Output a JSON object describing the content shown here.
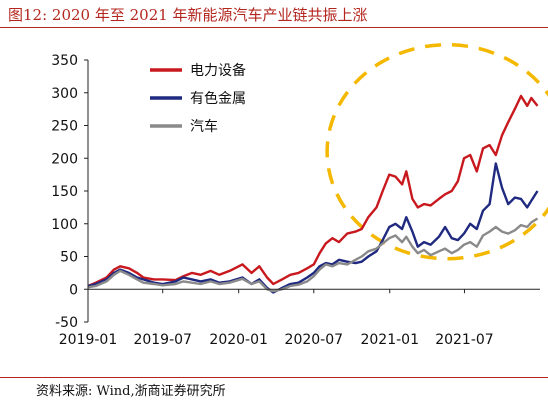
{
  "figure": {
    "title": "图12:   2020 年至 2021 年新能源汽车产业链共振上涨",
    "source": "资料来源:  Wind,浙商证券研究所"
  },
  "chart_data": {
    "type": "line",
    "title": "",
    "xlabel": "",
    "ylabel": "",
    "ylim": [
      -50,
      350
    ],
    "yticks": [
      -50,
      0,
      50,
      100,
      150,
      200,
      250,
      300,
      350
    ],
    "xlim": [
      "2019-01-01",
      "2021-12-31"
    ],
    "xticks": [
      {
        "date": "2019-01-01",
        "label": "2019-01"
      },
      {
        "date": "2019-07-01",
        "label": "2019-07"
      },
      {
        "date": "2020-01-01",
        "label": "2020-01"
      },
      {
        "date": "2020-07-01",
        "label": "2020-07"
      },
      {
        "date": "2021-01-01",
        "label": "2021-01"
      },
      {
        "date": "2021-07-01",
        "label": "2021-07"
      }
    ],
    "grid": false,
    "legend_position": "top-left",
    "annotation": "dashed orange ellipse highlighting 2021 rally",
    "colors": {
      "annotation": "#f5b800"
    },
    "series": [
      {
        "name": "电力设备",
        "color": "#c8191e",
        "points": [
          [
            "2019-01-01",
            5
          ],
          [
            "2019-01-20",
            10
          ],
          [
            "2019-02-15",
            18
          ],
          [
            "2019-03-05",
            30
          ],
          [
            "2019-03-20",
            35
          ],
          [
            "2019-04-10",
            32
          ],
          [
            "2019-04-30",
            25
          ],
          [
            "2019-05-15",
            18
          ],
          [
            "2019-06-10",
            15
          ],
          [
            "2019-07-01",
            15
          ],
          [
            "2019-08-01",
            14
          ],
          [
            "2019-08-20",
            20
          ],
          [
            "2019-09-10",
            25
          ],
          [
            "2019-10-01",
            22
          ],
          [
            "2019-10-25",
            28
          ],
          [
            "2019-11-15",
            22
          ],
          [
            "2019-12-10",
            28
          ],
          [
            "2020-01-10",
            38
          ],
          [
            "2020-02-01",
            25
          ],
          [
            "2020-02-20",
            35
          ],
          [
            "2020-03-10",
            18
          ],
          [
            "2020-03-25",
            8
          ],
          [
            "2020-04-15",
            15
          ],
          [
            "2020-05-05",
            22
          ],
          [
            "2020-05-25",
            25
          ],
          [
            "2020-06-15",
            32
          ],
          [
            "2020-07-01",
            38
          ],
          [
            "2020-07-15",
            55
          ],
          [
            "2020-07-30",
            70
          ],
          [
            "2020-08-15",
            78
          ],
          [
            "2020-08-31",
            72
          ],
          [
            "2020-09-20",
            85
          ],
          [
            "2020-10-10",
            88
          ],
          [
            "2020-10-25",
            92
          ],
          [
            "2020-11-10",
            110
          ],
          [
            "2020-11-30",
            125
          ],
          [
            "2020-12-15",
            150
          ],
          [
            "2020-12-31",
            175
          ],
          [
            "2021-01-15",
            172
          ],
          [
            "2021-01-31",
            160
          ],
          [
            "2021-02-10",
            180
          ],
          [
            "2021-02-25",
            138
          ],
          [
            "2021-03-10",
            125
          ],
          [
            "2021-03-25",
            130
          ],
          [
            "2021-04-10",
            128
          ],
          [
            "2021-04-30",
            138
          ],
          [
            "2021-05-15",
            145
          ],
          [
            "2021-05-31",
            150
          ],
          [
            "2021-06-15",
            165
          ],
          [
            "2021-06-30",
            200
          ],
          [
            "2021-07-15",
            205
          ],
          [
            "2021-07-31",
            180
          ],
          [
            "2021-08-15",
            215
          ],
          [
            "2021-08-31",
            220
          ],
          [
            "2021-09-15",
            205
          ],
          [
            "2021-09-30",
            235
          ],
          [
            "2021-10-15",
            255
          ],
          [
            "2021-10-31",
            275
          ],
          [
            "2021-11-15",
            295
          ],
          [
            "2021-11-30",
            280
          ],
          [
            "2021-12-10",
            292
          ],
          [
            "2021-12-25",
            280
          ]
        ]
      },
      {
        "name": "有色金属",
        "color": "#1f2a80",
        "points": [
          [
            "2019-01-01",
            5
          ],
          [
            "2019-01-20",
            8
          ],
          [
            "2019-02-15",
            15
          ],
          [
            "2019-03-05",
            25
          ],
          [
            "2019-03-20",
            30
          ],
          [
            "2019-04-10",
            25
          ],
          [
            "2019-04-30",
            18
          ],
          [
            "2019-05-15",
            15
          ],
          [
            "2019-06-10",
            10
          ],
          [
            "2019-07-01",
            8
          ],
          [
            "2019-08-01",
            12
          ],
          [
            "2019-08-20",
            18
          ],
          [
            "2019-09-10",
            15
          ],
          [
            "2019-10-01",
            12
          ],
          [
            "2019-10-25",
            15
          ],
          [
            "2019-11-15",
            10
          ],
          [
            "2019-12-10",
            12
          ],
          [
            "2020-01-10",
            18
          ],
          [
            "2020-02-01",
            8
          ],
          [
            "2020-02-20",
            15
          ],
          [
            "2020-03-10",
            2
          ],
          [
            "2020-03-25",
            -5
          ],
          [
            "2020-04-15",
            2
          ],
          [
            "2020-05-05",
            8
          ],
          [
            "2020-05-25",
            10
          ],
          [
            "2020-06-15",
            18
          ],
          [
            "2020-07-01",
            25
          ],
          [
            "2020-07-15",
            35
          ],
          [
            "2020-07-30",
            40
          ],
          [
            "2020-08-15",
            38
          ],
          [
            "2020-08-31",
            45
          ],
          [
            "2020-09-20",
            42
          ],
          [
            "2020-10-10",
            40
          ],
          [
            "2020-10-25",
            42
          ],
          [
            "2020-11-10",
            50
          ],
          [
            "2020-11-30",
            58
          ],
          [
            "2020-12-15",
            75
          ],
          [
            "2020-12-31",
            95
          ],
          [
            "2021-01-15",
            100
          ],
          [
            "2021-01-31",
            92
          ],
          [
            "2021-02-10",
            110
          ],
          [
            "2021-02-25",
            88
          ],
          [
            "2021-03-10",
            65
          ],
          [
            "2021-03-25",
            72
          ],
          [
            "2021-04-10",
            68
          ],
          [
            "2021-04-30",
            80
          ],
          [
            "2021-05-15",
            95
          ],
          [
            "2021-05-31",
            78
          ],
          [
            "2021-06-15",
            75
          ],
          [
            "2021-06-30",
            85
          ],
          [
            "2021-07-15",
            100
          ],
          [
            "2021-07-31",
            92
          ],
          [
            "2021-08-15",
            120
          ],
          [
            "2021-08-31",
            130
          ],
          [
            "2021-09-15",
            192
          ],
          [
            "2021-09-30",
            155
          ],
          [
            "2021-10-15",
            130
          ],
          [
            "2021-10-31",
            140
          ],
          [
            "2021-11-15",
            138
          ],
          [
            "2021-11-30",
            125
          ],
          [
            "2021-12-10",
            135
          ],
          [
            "2021-12-25",
            150
          ]
        ]
      },
      {
        "name": "汽车",
        "color": "#8a8a8a",
        "points": [
          [
            "2019-01-01",
            3
          ],
          [
            "2019-01-20",
            5
          ],
          [
            "2019-02-15",
            12
          ],
          [
            "2019-03-05",
            22
          ],
          [
            "2019-03-20",
            28
          ],
          [
            "2019-04-10",
            22
          ],
          [
            "2019-04-30",
            15
          ],
          [
            "2019-05-15",
            10
          ],
          [
            "2019-06-10",
            8
          ],
          [
            "2019-07-01",
            6
          ],
          [
            "2019-08-01",
            8
          ],
          [
            "2019-08-20",
            12
          ],
          [
            "2019-09-10",
            10
          ],
          [
            "2019-10-01",
            8
          ],
          [
            "2019-10-25",
            12
          ],
          [
            "2019-11-15",
            8
          ],
          [
            "2019-12-10",
            10
          ],
          [
            "2020-01-10",
            16
          ],
          [
            "2020-02-01",
            8
          ],
          [
            "2020-02-20",
            12
          ],
          [
            "2020-03-10",
            0
          ],
          [
            "2020-03-25",
            -3
          ],
          [
            "2020-04-15",
            0
          ],
          [
            "2020-05-05",
            5
          ],
          [
            "2020-05-25",
            7
          ],
          [
            "2020-06-15",
            12
          ],
          [
            "2020-07-01",
            20
          ],
          [
            "2020-07-15",
            30
          ],
          [
            "2020-07-30",
            38
          ],
          [
            "2020-08-15",
            35
          ],
          [
            "2020-08-31",
            40
          ],
          [
            "2020-09-20",
            38
          ],
          [
            "2020-10-10",
            45
          ],
          [
            "2020-10-25",
            50
          ],
          [
            "2020-11-10",
            58
          ],
          [
            "2020-11-30",
            62
          ],
          [
            "2020-12-15",
            70
          ],
          [
            "2020-12-31",
            78
          ],
          [
            "2021-01-15",
            82
          ],
          [
            "2021-01-31",
            72
          ],
          [
            "2021-02-10",
            80
          ],
          [
            "2021-02-25",
            65
          ],
          [
            "2021-03-10",
            55
          ],
          [
            "2021-03-25",
            60
          ],
          [
            "2021-04-10",
            52
          ],
          [
            "2021-04-30",
            58
          ],
          [
            "2021-05-15",
            62
          ],
          [
            "2021-05-31",
            55
          ],
          [
            "2021-06-15",
            60
          ],
          [
            "2021-06-30",
            68
          ],
          [
            "2021-07-15",
            72
          ],
          [
            "2021-07-31",
            65
          ],
          [
            "2021-08-15",
            82
          ],
          [
            "2021-08-31",
            88
          ],
          [
            "2021-09-15",
            95
          ],
          [
            "2021-09-30",
            88
          ],
          [
            "2021-10-15",
            85
          ],
          [
            "2021-10-31",
            90
          ],
          [
            "2021-11-15",
            98
          ],
          [
            "2021-11-30",
            95
          ],
          [
            "2021-12-10",
            102
          ],
          [
            "2021-12-25",
            108
          ]
        ]
      }
    ]
  }
}
